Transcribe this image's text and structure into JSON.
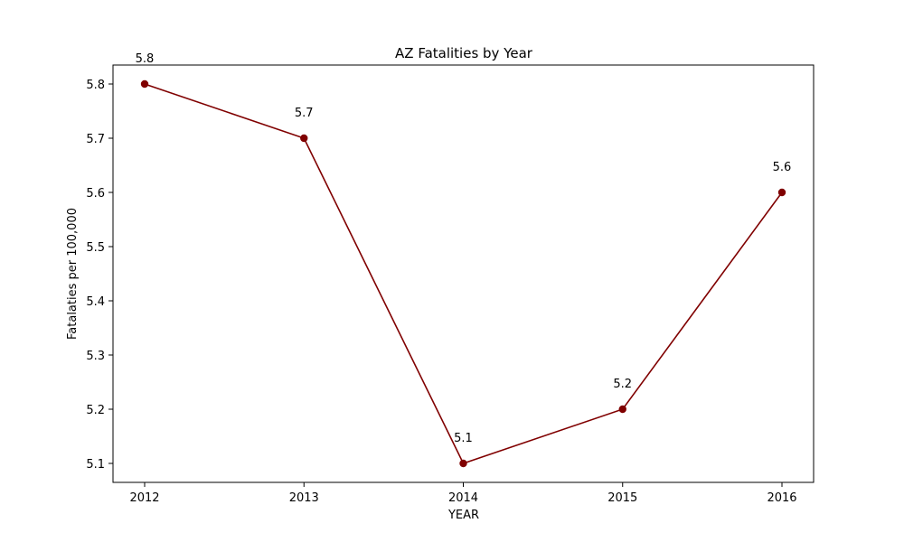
{
  "chart_data": {
    "type": "line",
    "title": "AZ Fatalities by Year",
    "xlabel": "YEAR",
    "ylabel": "Fatalaties per 100,000",
    "x": [
      "2012",
      "2013",
      "2014",
      "2015",
      "2016"
    ],
    "series": [
      {
        "values": [
          5.8,
          5.7,
          5.1,
          5.2,
          5.6
        ],
        "data_labels": [
          "5.8",
          "5.7",
          "5.1",
          "5.2",
          "5.6"
        ],
        "color": "#800000",
        "marker": "circle"
      }
    ],
    "yticks": [
      "5.1",
      "5.2",
      "5.3",
      "5.4",
      "5.5",
      "5.6",
      "5.7",
      "5.8"
    ],
    "ylim": [
      5.065,
      5.835
    ],
    "grid": false,
    "legend": "none"
  }
}
